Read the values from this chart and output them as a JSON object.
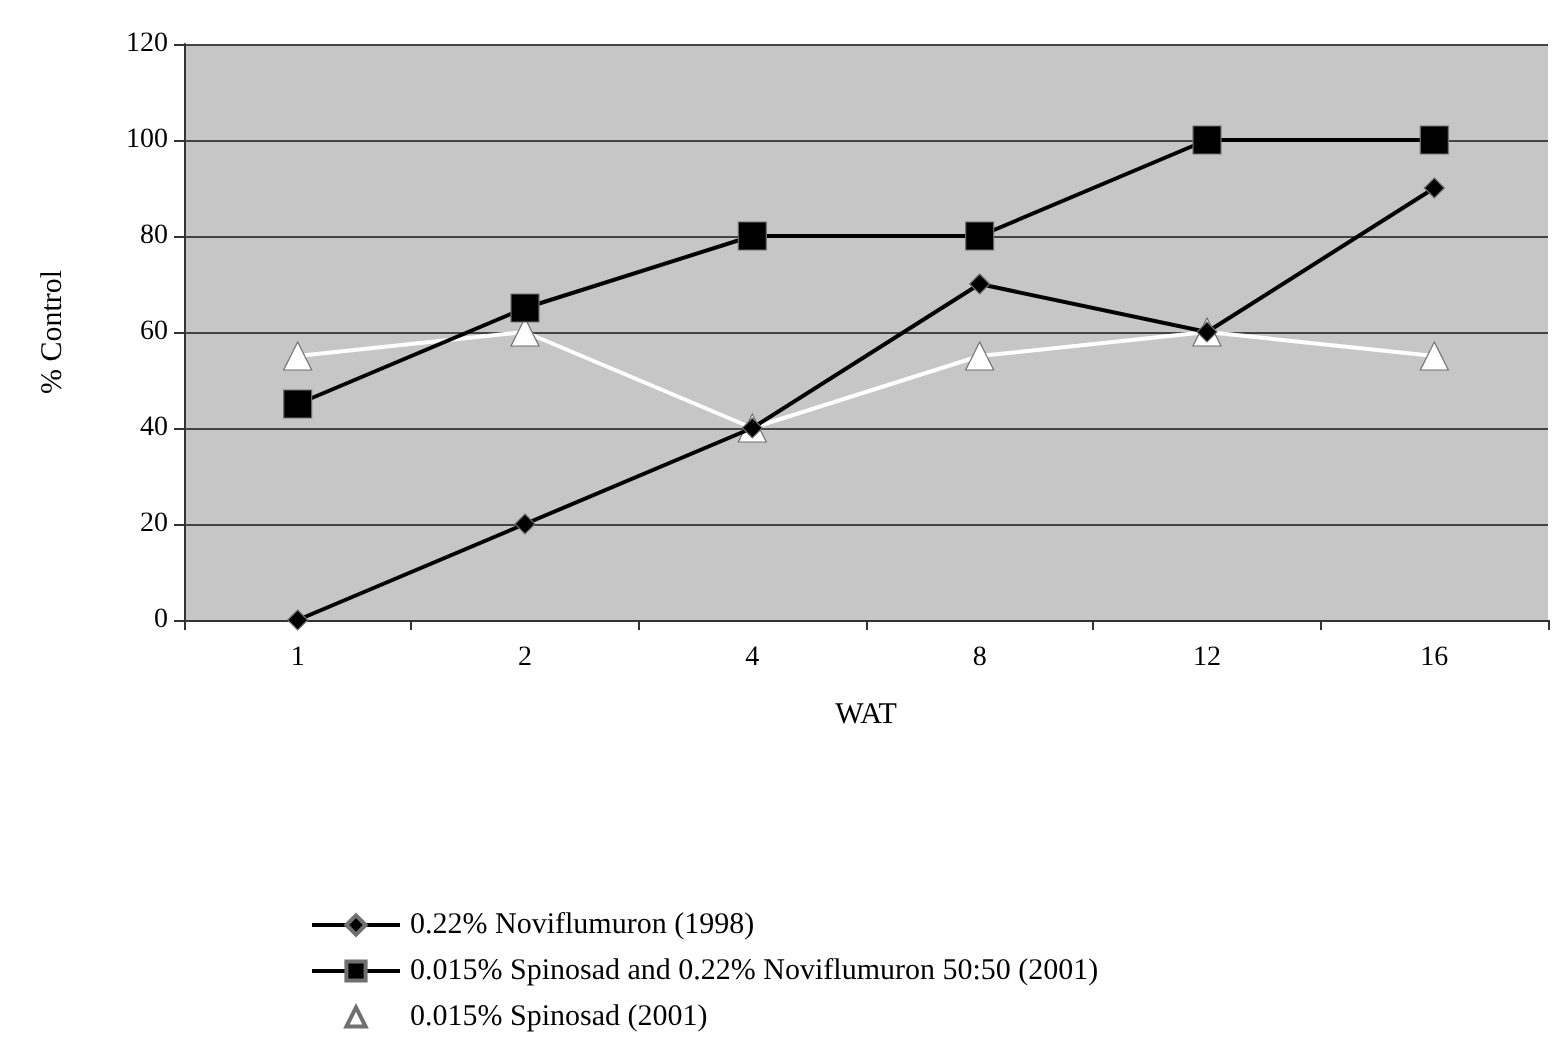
{
  "chart_data": {
    "type": "line",
    "xlabel": "WAT",
    "ylabel": "% Control",
    "categories": [
      "1",
      "2",
      "4",
      "8",
      "12",
      "16"
    ],
    "series": [
      {
        "name": "0.22% Noviflumuron (1998)",
        "color": "#000000",
        "marker": "diamond",
        "values": [
          0,
          20,
          40,
          70,
          60,
          90
        ]
      },
      {
        "name": "0.015% Spinosad and 0.22% Noviflumuron 50:50 (2001)",
        "color": "#000000",
        "marker": "square",
        "values": [
          45,
          65,
          80,
          80,
          100,
          100
        ]
      },
      {
        "name": "0.015% Spinosad (2001)",
        "color": "#ffffff",
        "marker": "triangle",
        "values": [
          55,
          60,
          40,
          55,
          60,
          55
        ]
      }
    ],
    "ylim": [
      0,
      120
    ],
    "yticks": [
      0,
      20,
      40,
      60,
      80,
      100,
      120
    ],
    "grid": "y",
    "legend": "bottom",
    "line_style": "solid"
  }
}
